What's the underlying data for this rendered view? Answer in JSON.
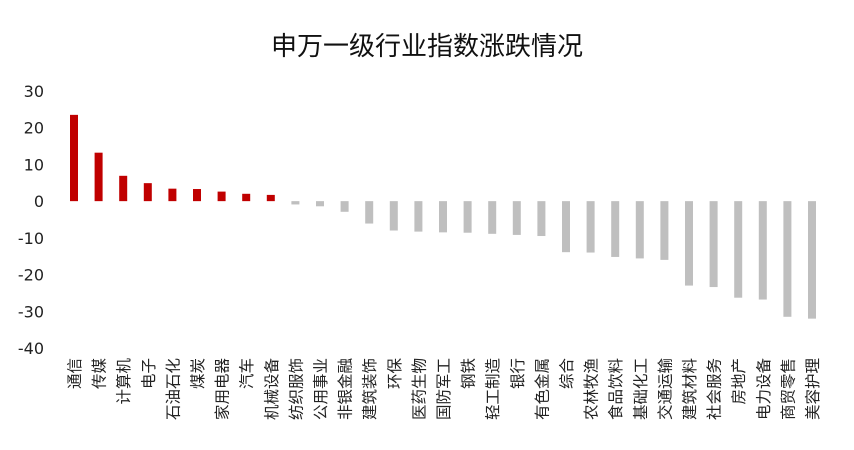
{
  "chart_data": {
    "type": "bar",
    "title": "申万一级行业指数涨跌情况",
    "xlabel": "",
    "ylabel": "",
    "ylim": [
      -40,
      30
    ],
    "yticks": [
      30,
      20,
      10,
      0,
      -10,
      -20,
      -30,
      -40
    ],
    "grid": false,
    "legend": "none",
    "colors": {
      "positive": "#c00000",
      "negative": "#bfbfbf",
      "text": "#222222"
    },
    "categories": [
      "通信",
      "传媒",
      "计算机",
      "电子",
      "石油石化",
      "煤炭",
      "家用电器",
      "汽车",
      "机械设备",
      "纺织服饰",
      "公用事业",
      "非银金融",
      "建筑装饰",
      "环保",
      "医药生物",
      "国防军工",
      "钢铁",
      "轻工制造",
      "银行",
      "有色金属",
      "综合",
      "农林牧渔",
      "食品饮料",
      "基础化工",
      "交通运输",
      "建筑材料",
      "社会服务",
      "房地产",
      "电力设备",
      "商贸零售",
      "美容护理"
    ],
    "values": [
      23.5,
      13.2,
      6.9,
      4.9,
      3.4,
      3.3,
      2.6,
      2.0,
      1.7,
      -0.9,
      -1.4,
      -2.9,
      -6.1,
      -8.0,
      -8.3,
      -8.5,
      -8.6,
      -8.9,
      -9.2,
      -9.5,
      -13.9,
      -14.0,
      -15.2,
      -15.6,
      -16.0,
      -23.0,
      -23.4,
      -26.3,
      -26.8,
      -31.5,
      -32.0
    ]
  }
}
